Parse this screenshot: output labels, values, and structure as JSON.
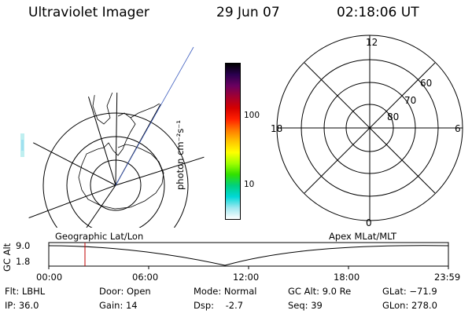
{
  "header": {
    "title": "Ultraviolet Imager",
    "date": "29 Jun 07",
    "time": "02:18:06 UT"
  },
  "colorbar": {
    "unit": "photon cm⁻²s⁻¹",
    "tick_100": "100",
    "tick_10": "10",
    "colors_top_to_bottom": [
      "#000000",
      "#2b004f",
      "#6a0060",
      "#a30030",
      "#d40000",
      "#ff2000",
      "#ff7a00",
      "#ffc400",
      "#ffff00",
      "#a0ff00",
      "#30e000",
      "#00d080",
      "#00d8d8",
      "#a0e8f0",
      "#ffffff"
    ]
  },
  "apex_plot": {
    "labels": {
      "noon": "12",
      "midnight": "0",
      "dawn": "6",
      "dusk": "18"
    },
    "lat_labels": [
      "60",
      "70",
      "80"
    ]
  },
  "timeline": {
    "left_label": "Geographic Lat/Lon",
    "right_label": "Apex MLat/MLT",
    "yaxis_label": "GC Alt",
    "ytick_top": "9.0",
    "ytick_bottom": "1.8",
    "xticks": [
      "00:00",
      "06:00",
      "12:00",
      "18:00",
      "23:59"
    ],
    "marker_time": "02:18:06"
  },
  "status": {
    "flt": "Flt: LBHL",
    "ip": "IP: 36.0",
    "door": "Door: Open",
    "gain": "Gain: 14",
    "mode": "Mode: Normal",
    "dsp": "Dsp:    -2.7",
    "gc_alt": "GC Alt: 9.0 Re",
    "seq": "Seq: 39",
    "glat": "GLat: −71.9",
    "glon": "GLon: 278.0"
  }
}
